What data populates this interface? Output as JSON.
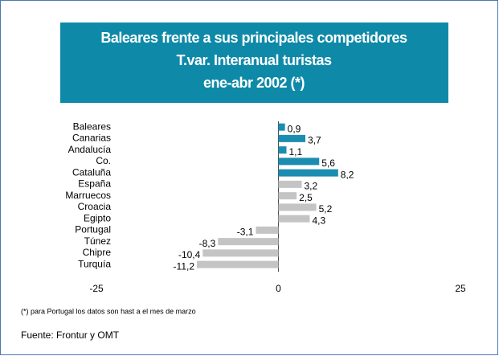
{
  "chart_data": {
    "type": "hbar",
    "title_lines": [
      "Baleares frente a sus principales competidores",
      "T.var. Interanual turistas",
      "ene-abr 2002 (*)"
    ],
    "categories": [
      "Baleares",
      "Canarias",
      "Andalucía",
      "Co.",
      "Cataluña",
      "España",
      "Marruecos",
      "Croacia",
      "Egipto",
      "Portugal",
      "Túnez",
      "Chipre",
      "Turquía"
    ],
    "values": [
      0.9,
      3.7,
      1.1,
      5.6,
      8.2,
      3.2,
      2.5,
      5.2,
      4.3,
      -3.1,
      -8.3,
      -10.4,
      -11.2
    ],
    "value_labels": [
      "0,9",
      "3,7",
      "1,1",
      "5,6",
      "8,2",
      "3,2",
      "2,5",
      "5,2",
      "4,3",
      "-3,1",
      "-8,3",
      "-10,4",
      "-11,2"
    ],
    "colors": [
      "#1b8db0",
      "#1b8db0",
      "#1b8db0",
      "#1b8db0",
      "#1b8db0",
      "#c4c4c4",
      "#c4c4c4",
      "#c4c4c4",
      "#c4c4c4",
      "#c4c4c4",
      "#c4c4c4",
      "#c4c4c4",
      "#c4c4c4"
    ],
    "xlim": [
      -25,
      25
    ],
    "xticks": [
      -25,
      0,
      25
    ],
    "footnote": "(*) para  Portugal los datos son hast a el mes de marzo",
    "source": "Fuente: Frontur y OMT"
  }
}
